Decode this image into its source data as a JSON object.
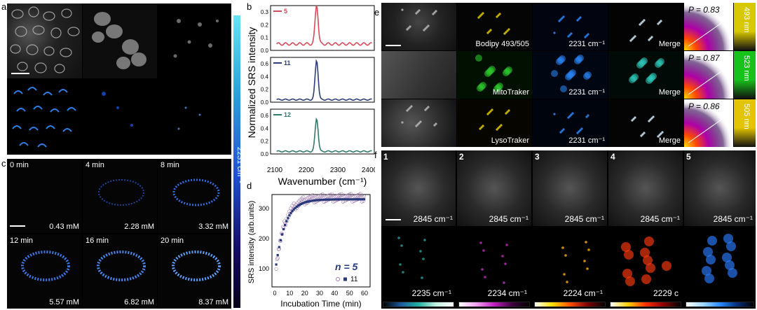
{
  "panel_labels": {
    "a": "a",
    "b": "b",
    "c": "c",
    "d": "d",
    "e": "e",
    "f": "f"
  },
  "panel_a": {
    "colorbar_label": "2231 cm⁻¹"
  },
  "panel_b": {
    "ylabel": "Normalized SRS intensity",
    "xlabel": "Wavenumber (cm⁻¹)",
    "xticks": [
      "2100",
      "2200",
      "2300",
      "2400"
    ],
    "subplots": [
      {
        "legend": "5",
        "color": "#d94a5a",
        "yticks": [
          "0.0",
          "0.1",
          "0.2",
          "0.3"
        ]
      },
      {
        "legend": "11",
        "color": "#2a3f7a",
        "yticks": [
          "0.0",
          "0.2",
          "0.4",
          "0.6"
        ]
      },
      {
        "legend": "12",
        "color": "#2f7a6a",
        "yticks": [
          "0.0",
          "0.2",
          "0.4",
          "0.6"
        ]
      }
    ]
  },
  "panel_c": {
    "tiles": [
      {
        "time": "0 min",
        "conc": "0.43 mM"
      },
      {
        "time": "4 min",
        "conc": "2.28 mM"
      },
      {
        "time": "8 min",
        "conc": "3.32 mM"
      },
      {
        "time": "12 min",
        "conc": "5.57 mM"
      },
      {
        "time": "16 min",
        "conc": "6.82 mM"
      },
      {
        "time": "20 min",
        "conc": "8.37 mM"
      }
    ]
  },
  "panel_d": {
    "ylabel": "SRS intensity (arb.units)",
    "xlabel": "Incubation Time (min)",
    "xticks": [
      "0",
      "10",
      "20",
      "30",
      "40",
      "50",
      "60"
    ],
    "yticks": [
      "100",
      "200",
      "300"
    ],
    "n_label": "n = 5",
    "legend": "11"
  },
  "panel_e": {
    "rows": [
      {
        "probe": "Bodipy 493/505",
        "raman": "2231  cm⁻¹",
        "merge": "Merge",
        "p": "P = 0.83",
        "band": "493 nm",
        "band_color": "#d8c800"
      },
      {
        "probe": "MitoTraker",
        "raman": "2231  cm⁻¹",
        "merge": "Merge",
        "p": "P = 0.87",
        "band": "523 nm",
        "band_color": "#17c21a"
      },
      {
        "probe": "LysoTraker",
        "raman": "2231  cm⁻¹",
        "merge": "Merge",
        "p": "P = 0.86",
        "band": "505 nm",
        "band_color": "#e2c400"
      }
    ]
  },
  "panel_f": {
    "top": [
      {
        "num": "1",
        "label": "2845 cm⁻¹"
      },
      {
        "num": "2",
        "label": "2845 cm⁻¹"
      },
      {
        "num": "3",
        "label": "2845 cm⁻¹"
      },
      {
        "num": "4",
        "label": "2845 cm⁻¹"
      },
      {
        "num": "5",
        "label": "2845 cm⁻¹"
      }
    ],
    "bottom": [
      "2235 cm⁻¹",
      "2234 cm⁻¹",
      "2224 cm⁻¹",
      "2229 c",
      ""
    ]
  }
}
